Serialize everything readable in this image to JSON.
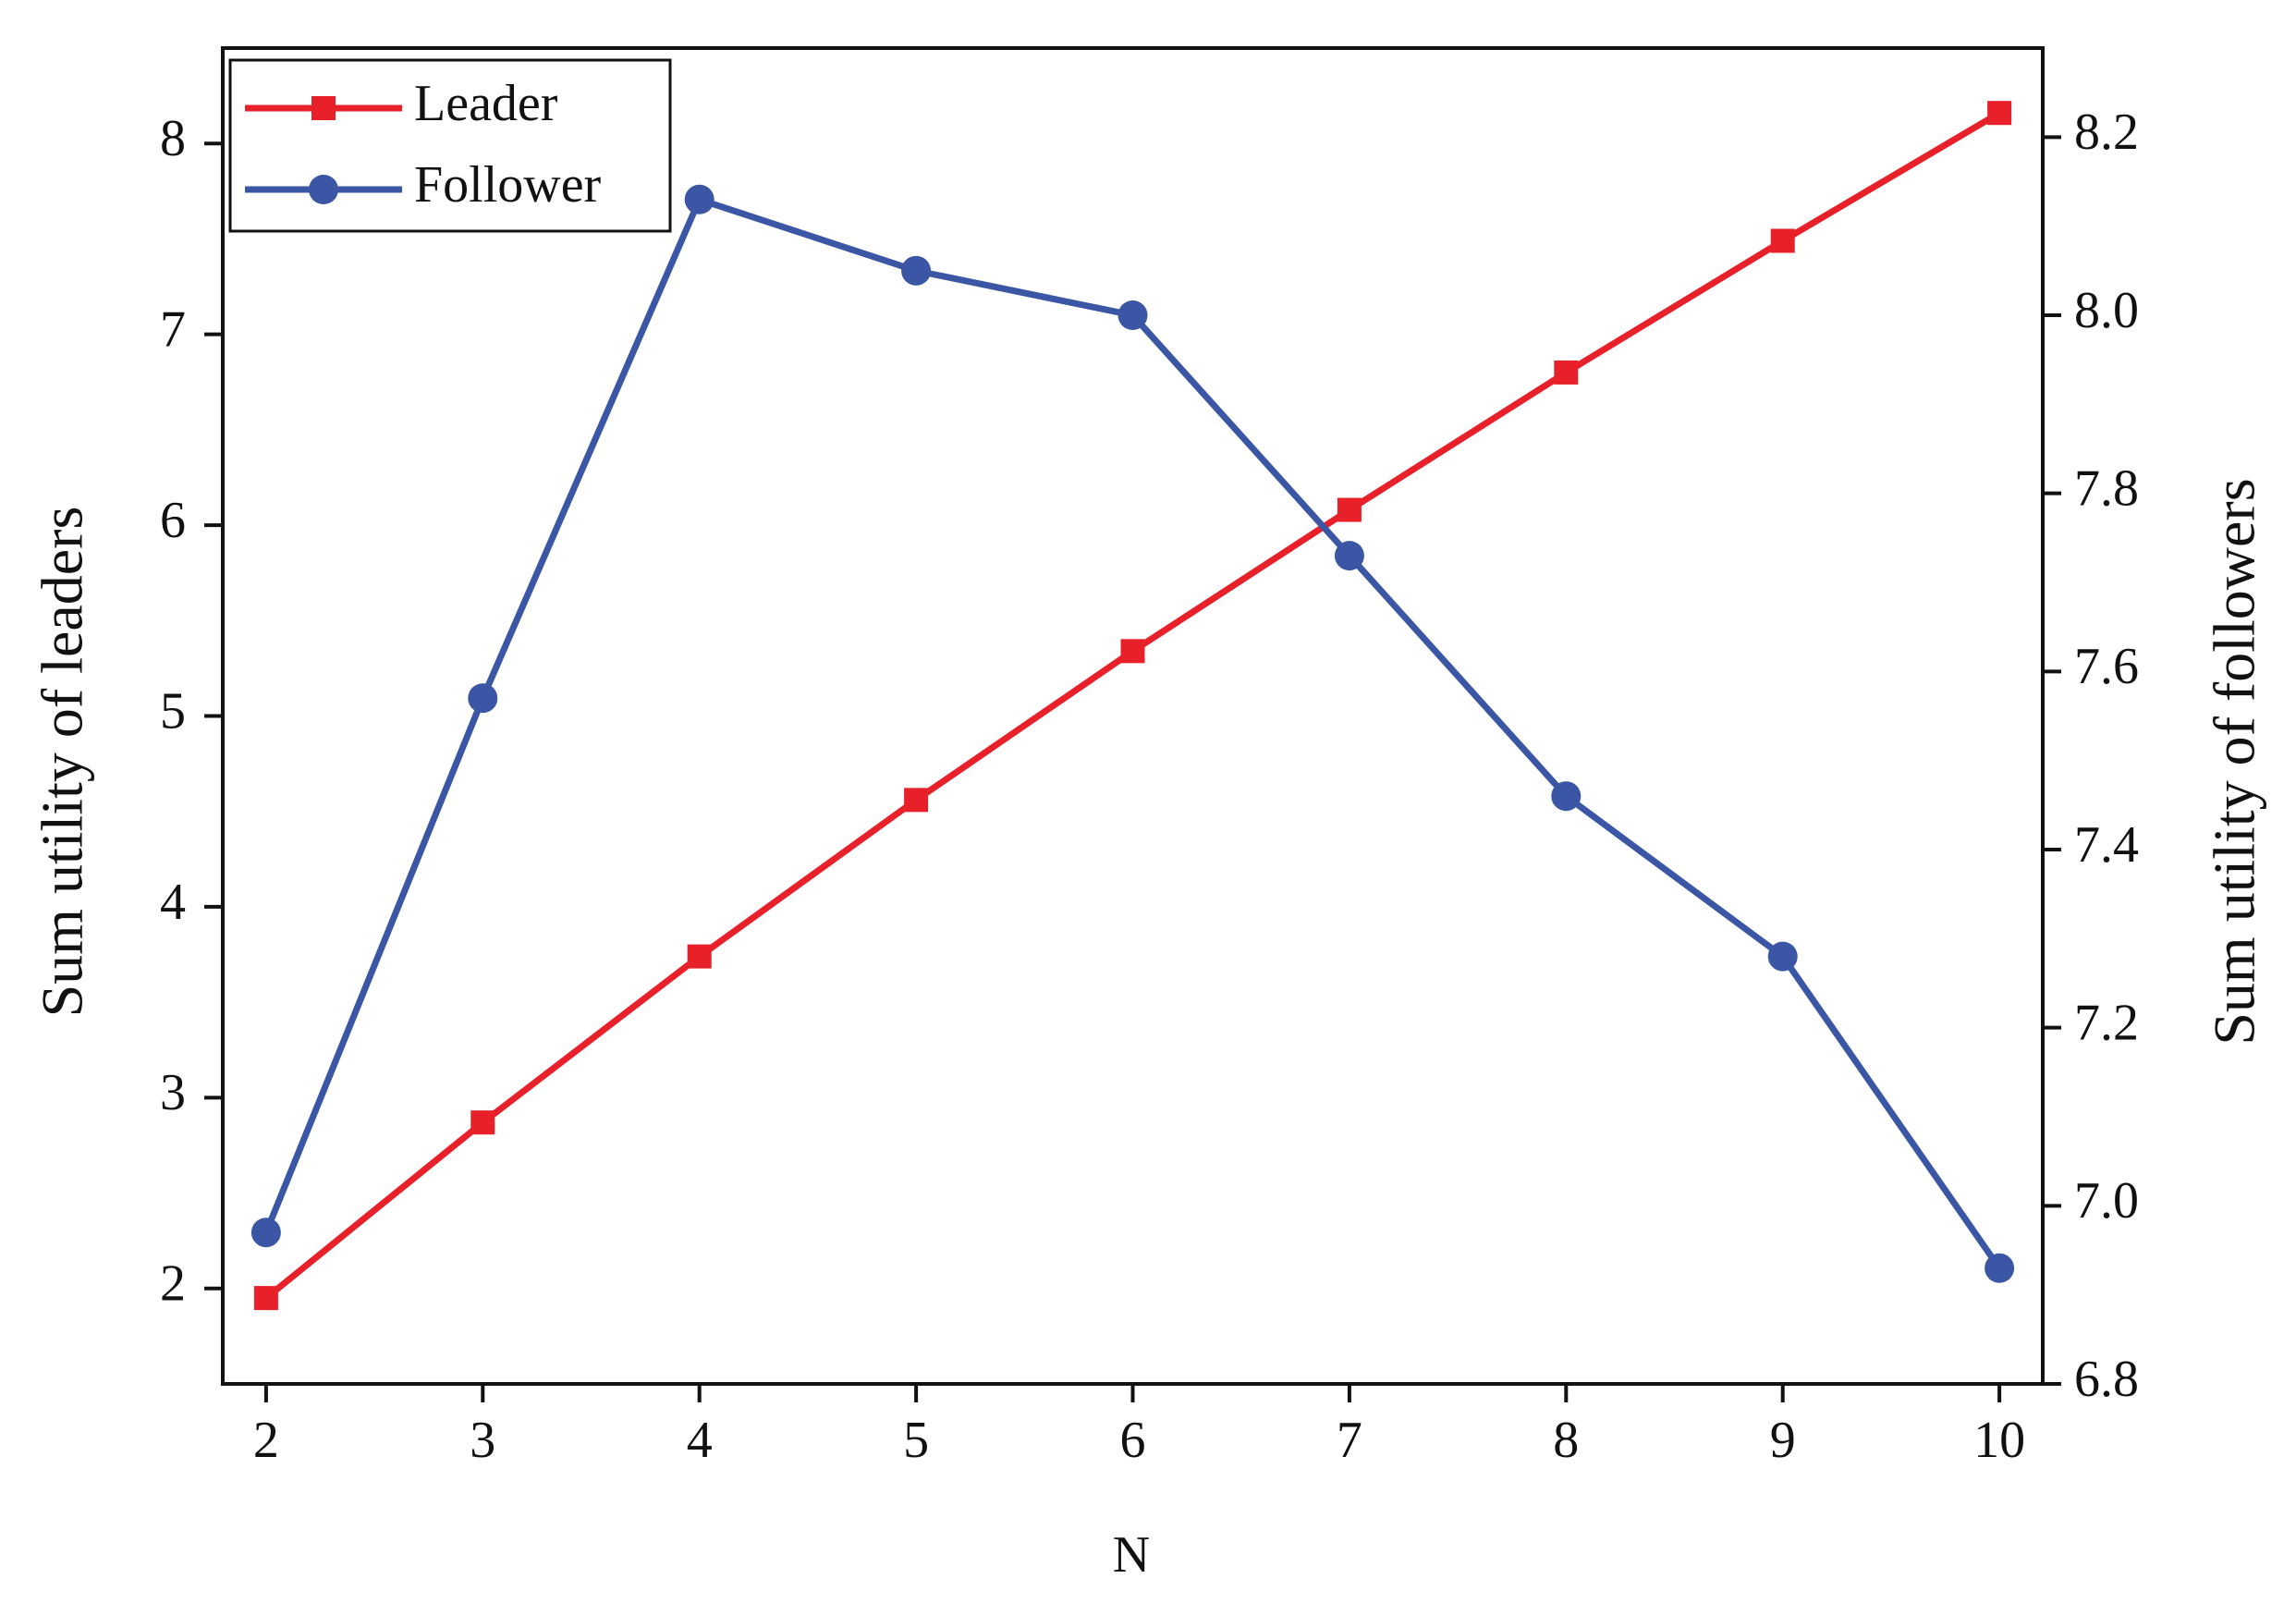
{
  "chart_data": {
    "type": "line",
    "x_label": "N",
    "y_label": "Sum utility of leaders",
    "y2_label": "Sum utility of followers",
    "x": [
      2,
      3,
      4,
      5,
      6,
      7,
      8,
      9,
      10
    ],
    "xlim": [
      1.8,
      10.2
    ],
    "xticks": [
      2,
      3,
      4,
      5,
      6,
      7,
      8,
      9,
      10
    ],
    "ylim": [
      1.5,
      8.5
    ],
    "yticks": [
      2,
      3,
      4,
      5,
      6,
      7,
      8
    ],
    "y2lim": [
      6.8,
      8.3
    ],
    "y2ticks": [
      6.8,
      {
        "value": 7,
        "label": "7.0"
      },
      7.2,
      7.4,
      7.6,
      7.8,
      {
        "value": 8,
        "label": "8.0"
      },
      8.2
    ],
    "legend": "upper left",
    "series": [
      {
        "name": "Leader",
        "color": "#e8202a",
        "marker": "square",
        "values": [
          1.95,
          2.87,
          3.74,
          4.56,
          5.34,
          6.08,
          6.8,
          7.49,
          8.16
        ]
      },
      {
        "name": "Follower",
        "color": "#3a56a5",
        "marker": "circle",
        "axis": "y2",
        "values": [
          6.97,
          7.57,
          8.13,
          8.05,
          8.0,
          7.73,
          7.46,
          7.28,
          6.93
        ]
      }
    ]
  }
}
